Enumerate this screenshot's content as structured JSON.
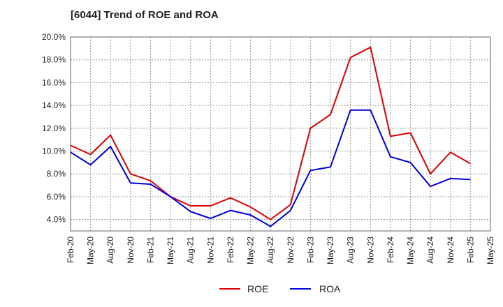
{
  "chart_data": {
    "type": "line",
    "title": "[6044]  Trend of ROE and ROA",
    "xlabel": "",
    "ylabel": "",
    "categories": [
      "Feb-20",
      "May-20",
      "Aug-20",
      "Nov-20",
      "Feb-21",
      "May-21",
      "Aug-21",
      "Nov-21",
      "Feb-22",
      "May-22",
      "Aug-22",
      "Nov-22",
      "Feb-23",
      "May-23",
      "Aug-23",
      "Nov-23",
      "Feb-24",
      "May-24",
      "Aug-24",
      "Nov-24",
      "Feb-25",
      "May-25"
    ],
    "ylim": [
      3.0,
      20.0
    ],
    "yticks": [
      4.0,
      6.0,
      8.0,
      10.0,
      12.0,
      14.0,
      16.0,
      18.0,
      20.0
    ],
    "ytick_labels": [
      "4.0%",
      "6.0%",
      "8.0%",
      "10.0%",
      "12.0%",
      "14.0%",
      "16.0%",
      "18.0%",
      "20.0%"
    ],
    "grid": true,
    "legend_position": "bottom-center",
    "series": [
      {
        "name": "ROE",
        "color": "#e00000",
        "values": [
          10.5,
          9.7,
          11.4,
          8.0,
          7.4,
          6.0,
          5.2,
          5.2,
          5.9,
          5.1,
          4.0,
          5.3,
          12.0,
          13.2,
          18.2,
          19.1,
          11.3,
          11.6,
          8.0,
          9.9,
          8.9,
          null
        ]
      },
      {
        "name": "ROA",
        "color": "#0000dd",
        "values": [
          9.9,
          8.8,
          10.4,
          7.2,
          7.1,
          6.0,
          4.7,
          4.1,
          4.8,
          4.4,
          3.4,
          4.8,
          8.3,
          8.6,
          13.6,
          13.6,
          9.5,
          9.0,
          6.9,
          7.6,
          7.5,
          null
        ]
      }
    ]
  }
}
